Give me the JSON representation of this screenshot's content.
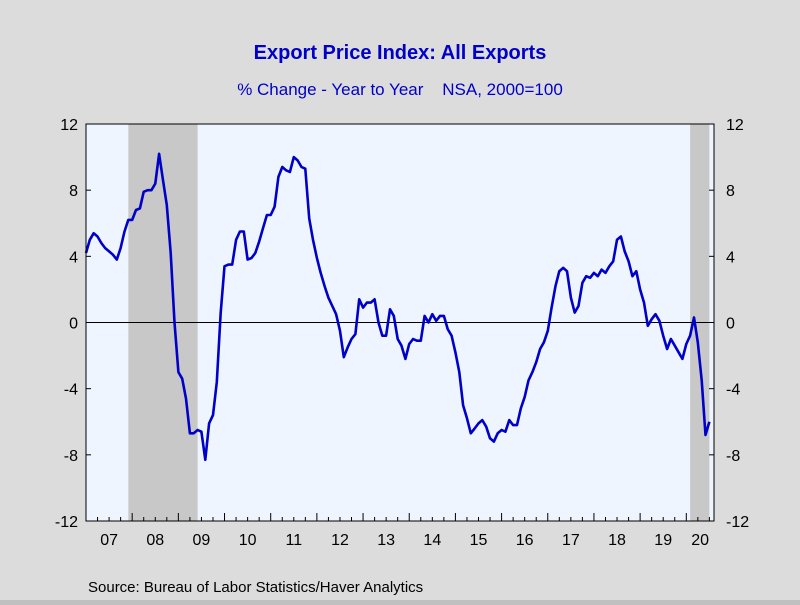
{
  "chart_data": {
    "type": "line",
    "title": "Export Price Index: All Exports",
    "subtitle": "% Change - Year to Year    NSA, 2000=100",
    "source": "Source:  Bureau of Labor Statistics/Haver Analytics",
    "ylim": [
      -12,
      12
    ],
    "y_ticks": [
      12,
      8,
      4,
      0,
      -4,
      -8,
      -12
    ],
    "y_tick_labels": [
      "12",
      "8",
      "4",
      "0",
      "-4",
      "-8",
      "-12"
    ],
    "x_range": [
      2007.0,
      2020.6
    ],
    "x_tick_labels": [
      {
        "label": "07",
        "year": 2007
      },
      {
        "label": "08",
        "year": 2008
      },
      {
        "label": "09",
        "year": 2009
      },
      {
        "label": "10",
        "year": 2010
      },
      {
        "label": "11",
        "year": 2011
      },
      {
        "label": "12",
        "year": 2012
      },
      {
        "label": "13",
        "year": 2013
      },
      {
        "label": "14",
        "year": 2014
      },
      {
        "label": "15",
        "year": 2015
      },
      {
        "label": "16",
        "year": 2016
      },
      {
        "label": "17",
        "year": 2017
      },
      {
        "label": "18",
        "year": 2018
      },
      {
        "label": "19",
        "year": 2019
      },
      {
        "label": "20",
        "year": 2020
      }
    ],
    "recessions": [
      {
        "start": 2007.917,
        "end": 2009.417
      },
      {
        "start": 2020.083,
        "end": 2020.5
      }
    ],
    "colors": {
      "line": "#0000c8",
      "plot_background": "#eef5ff",
      "recession": "#c8c8c8",
      "title": "#0000c8",
      "frame": "#dcdcdc"
    },
    "series": [
      {
        "values": [
          4.2,
          5.0,
          5.4,
          5.2,
          4.8,
          4.5,
          4.3,
          4.1,
          3.8,
          4.5,
          5.5,
          6.2,
          6.2,
          6.8,
          6.9,
          7.9,
          8.0,
          8.0,
          8.4,
          10.2,
          8.6,
          7.1,
          4.2,
          0.0,
          -3.0,
          -3.4,
          -4.6,
          -6.7,
          -6.7,
          -6.5,
          -6.6,
          -8.3,
          -6.1,
          -5.6,
          -3.6,
          0.6,
          3.4,
          3.5,
          3.5,
          5.0,
          5.5,
          5.5,
          3.8,
          3.9,
          4.2,
          4.9,
          5.7,
          6.5,
          6.5,
          7.0,
          8.8,
          9.4,
          9.2,
          9.1,
          10.0,
          9.8,
          9.4,
          9.3,
          6.3,
          5.0,
          3.9,
          3.0,
          2.2,
          1.5,
          1.0,
          0.5,
          -0.5,
          -2.1,
          -1.5,
          -1.0,
          -0.7,
          1.4,
          0.9,
          1.2,
          1.2,
          1.4,
          0.0,
          -0.8,
          -0.8,
          0.8,
          0.4,
          -1.0,
          -1.4,
          -2.2,
          -1.3,
          -1.0,
          -1.1,
          -1.1,
          0.4,
          0.0,
          0.5,
          0.1,
          0.4,
          0.4,
          -0.4,
          -0.8,
          -1.8,
          -3.0,
          -5.0,
          -5.8,
          -6.7,
          -6.4,
          -6.1,
          -5.9,
          -6.3,
          -7.0,
          -7.2,
          -6.7,
          -6.5,
          -6.6,
          -5.9,
          -6.2,
          -6.2,
          -5.2,
          -4.5,
          -3.5,
          -3.0,
          -2.4,
          -1.6,
          -1.2,
          -0.5,
          0.9,
          2.2,
          3.1,
          3.3,
          3.1,
          1.5,
          0.6,
          1.0,
          2.4,
          2.8,
          2.7,
          3.0,
          2.8,
          3.2,
          3.0,
          3.4,
          3.7,
          5.0,
          5.2,
          4.3,
          3.7,
          2.8,
          3.1,
          2.0,
          1.2,
          -0.2,
          0.2,
          0.5,
          0.1,
          -0.8,
          -1.6,
          -1.0,
          -1.4,
          -1.8,
          -2.2,
          -1.3,
          -0.8,
          0.3,
          -1.2,
          -3.5,
          -6.8,
          -6.0
        ]
      }
    ]
  }
}
